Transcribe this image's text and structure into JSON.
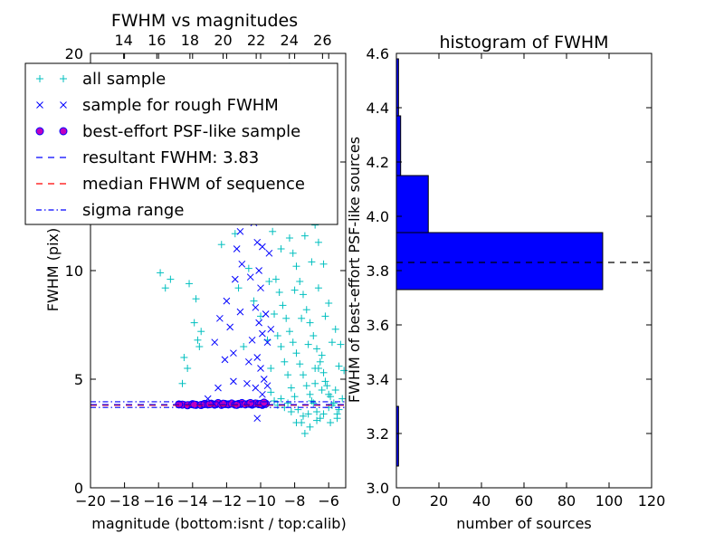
{
  "colors": {
    "all_sample": "#00bfbf",
    "rough_sample": "#0000ff",
    "psf_face": "#bf00bf",
    "psf_edge": "#0000ff",
    "resultant_line": "#0000ff",
    "median_line": "#ff0000",
    "sigma_line": "#0000ff",
    "hist_bar": "#0000ff"
  },
  "chart_data": [
    {
      "type": "scatter",
      "title": "FWHM vs magnitudes",
      "xlabel": "magnitude (bottom:isnt / top:calib)",
      "ylabel": "FWHM (pix)",
      "xlim": [
        -20,
        -5
      ],
      "ylim": [
        0,
        20
      ],
      "top_xlim": [
        12,
        27.4
      ],
      "x_ticks": [
        -20,
        -18,
        -16,
        -14,
        -12,
        -10,
        -8,
        -6
      ],
      "x_tick_labels": [
        "−20",
        "−18",
        "−16",
        "−14",
        "−12",
        "−10",
        "−8",
        "−6"
      ],
      "y_ticks": [
        0,
        5,
        10,
        15,
        20
      ],
      "y_tick_labels": [
        "0",
        "5",
        "10",
        "15",
        "20"
      ],
      "top_x_ticks": [
        14,
        16,
        18,
        20,
        22,
        24,
        26
      ],
      "top_x_tick_labels": [
        "14",
        "16",
        "18",
        "20",
        "22",
        "24",
        "26"
      ],
      "legend": {
        "location": "upper-left",
        "entries": [
          {
            "label": "all sample",
            "marker": "+"
          },
          {
            "label": "sample for rough FWHM",
            "marker": "x"
          },
          {
            "label": "best-effort PSF-like sample",
            "marker": "o"
          },
          {
            "label": "resultant FWHM: 3.83",
            "marker": "--"
          },
          {
            "label": "median FHWM of sequence",
            "marker": "--"
          },
          {
            "label": "sigma range",
            "marker": "-."
          }
        ]
      },
      "lines": {
        "resultant_fwhm": 3.83,
        "median_fwhm": 3.8,
        "sigma_range": [
          3.7,
          3.96
        ]
      },
      "series": [
        {
          "name": "all sample",
          "marker": "+",
          "points": [
            [
              -15.9,
              9.9
            ],
            [
              -15.6,
              9.2
            ],
            [
              -15.3,
              9.6
            ],
            [
              -14.8,
              12.5
            ],
            [
              -14.2,
              9.4
            ],
            [
              -13.8,
              8.7
            ],
            [
              -13.9,
              7.6
            ],
            [
              -13.7,
              6.8
            ],
            [
              -13.5,
              7.2
            ],
            [
              -13.6,
              6.5
            ],
            [
              -14.6,
              4.8
            ],
            [
              -14.3,
              5.5
            ],
            [
              -14.5,
              6.0
            ],
            [
              -12.3,
              11.2
            ],
            [
              -11.5,
              11.7
            ],
            [
              -11.3,
              9.2
            ],
            [
              -10.9,
              12.8
            ],
            [
              -10.7,
              10.1
            ],
            [
              -10.4,
              8.6
            ],
            [
              -10.0,
              7.9
            ],
            [
              -11.0,
              6.5
            ],
            [
              -9.5,
              9.5
            ],
            [
              -9.0,
              14.5
            ],
            [
              -8.8,
              11.0
            ],
            [
              -8.3,
              19.4
            ],
            [
              -8.0,
              16.5
            ],
            [
              -7.6,
              14.8
            ],
            [
              -7.3,
              13.5
            ],
            [
              -6.8,
              12.1
            ],
            [
              -6.6,
              11.3
            ],
            [
              -6.3,
              10.3
            ],
            [
              -6.0,
              8.5
            ],
            [
              -5.6,
              7.3
            ],
            [
              -5.3,
              6.6
            ],
            [
              -5.1,
              5.4
            ],
            [
              -9.2,
              8.0
            ],
            [
              -9.0,
              7.0
            ],
            [
              -8.8,
              6.5
            ],
            [
              -8.6,
              5.8
            ],
            [
              -8.4,
              5.2
            ],
            [
              -8.2,
              4.6
            ],
            [
              -8.0,
              4.2
            ],
            [
              -7.8,
              3.6
            ],
            [
              -7.6,
              3.0
            ],
            [
              -7.4,
              2.5
            ],
            [
              -7.2,
              3.4
            ],
            [
              -7.0,
              4.0
            ],
            [
              -6.8,
              4.8
            ],
            [
              -6.6,
              5.5
            ],
            [
              -6.4,
              6.1
            ],
            [
              -6.2,
              4.9
            ],
            [
              -6.0,
              4.3
            ],
            [
              -5.8,
              3.8
            ],
            [
              -5.6,
              4.5
            ],
            [
              -5.4,
              3.6
            ],
            [
              -5.2,
              4.1
            ],
            [
              -9.6,
              6.8
            ],
            [
              -9.4,
              5.5
            ],
            [
              -9.1,
              9.6
            ],
            [
              -8.9,
              9.0
            ],
            [
              -8.7,
              8.4
            ],
            [
              -8.5,
              7.8
            ],
            [
              -8.3,
              7.2
            ],
            [
              -8.1,
              6.7
            ],
            [
              -7.9,
              6.2
            ],
            [
              -7.7,
              5.7
            ],
            [
              -7.5,
              5.2
            ],
            [
              -7.3,
              4.7
            ],
            [
              -7.1,
              4.3
            ],
            [
              -6.9,
              3.9
            ],
            [
              -6.7,
              3.5
            ],
            [
              -6.5,
              3.2
            ],
            [
              -9.3,
              11.8
            ],
            [
              -9.1,
              12.6
            ],
            [
              -8.9,
              13.2
            ],
            [
              -8.7,
              13.9
            ],
            [
              -8.5,
              12.3
            ],
            [
              -8.3,
              11.5
            ],
            [
              -8.1,
              10.8
            ],
            [
              -7.9,
              10.2
            ],
            [
              -7.7,
              9.5
            ],
            [
              -7.5,
              8.9
            ],
            [
              -7.3,
              8.2
            ],
            [
              -7.1,
              7.6
            ],
            [
              -6.9,
              7.0
            ],
            [
              -6.7,
              6.4
            ],
            [
              -6.5,
              5.8
            ],
            [
              -6.3,
              5.3
            ],
            [
              -6.1,
              4.7
            ],
            [
              -5.9,
              4.2
            ],
            [
              -5.7,
              3.9
            ],
            [
              -5.5,
              3.4
            ],
            [
              -8.6,
              15.2
            ],
            [
              -8.2,
              14.1
            ],
            [
              -7.8,
              12.9
            ],
            [
              -7.4,
              11.6
            ],
            [
              -7.0,
              10.4
            ],
            [
              -6.6,
              9.2
            ],
            [
              -6.2,
              7.9
            ],
            [
              -5.8,
              6.7
            ],
            [
              -5.4,
              5.6
            ],
            [
              -8.0,
              9.1
            ],
            [
              -7.6,
              7.8
            ],
            [
              -7.2,
              6.6
            ],
            [
              -6.8,
              5.5
            ],
            [
              -6.4,
              4.5
            ],
            [
              -6.0,
              3.7
            ],
            [
              -7.9,
              3.0
            ],
            [
              -7.5,
              3.3
            ],
            [
              -7.1,
              2.8
            ],
            [
              -6.7,
              3.1
            ],
            [
              -6.3,
              3.4
            ],
            [
              -5.9,
              3.0
            ],
            [
              -5.5,
              3.2
            ],
            [
              -9.4,
              4.4
            ],
            [
              -9.2,
              4.0
            ],
            [
              -9.0,
              3.8
            ],
            [
              -8.8,
              4.1
            ],
            [
              -8.6,
              3.7
            ],
            [
              -8.4,
              3.9
            ],
            [
              -8.2,
              3.5
            ]
          ]
        },
        {
          "name": "sample for rough FWHM",
          "marker": "x",
          "points": [
            [
              -11.3,
              12.9
            ],
            [
              -11.2,
              11.8
            ],
            [
              -11.4,
              11.0
            ],
            [
              -11.1,
              10.3
            ],
            [
              -11.5,
              9.6
            ],
            [
              -12.0,
              8.6
            ],
            [
              -12.4,
              7.8
            ],
            [
              -11.8,
              7.4
            ],
            [
              -12.7,
              6.7
            ],
            [
              -11.6,
              6.2
            ],
            [
              -12.1,
              5.9
            ],
            [
              -10.6,
              9.7
            ],
            [
              -10.4,
              12.2
            ],
            [
              -10.2,
              11.3
            ],
            [
              -10.1,
              10.0
            ],
            [
              -10.0,
              9.2
            ],
            [
              -10.3,
              8.3
            ],
            [
              -10.1,
              7.6
            ],
            [
              -9.9,
              7.1
            ],
            [
              -10.5,
              6.8
            ],
            [
              -10.2,
              6.0
            ],
            [
              -10.0,
              5.5
            ],
            [
              -9.8,
              5.0
            ],
            [
              -10.3,
              4.6
            ],
            [
              -9.9,
              4.3
            ],
            [
              -10.0,
              3.9
            ],
            [
              -10.2,
              3.2
            ],
            [
              -9.7,
              8.0
            ],
            [
              -9.6,
              6.7
            ],
            [
              -9.8,
              12.5
            ],
            [
              -9.5,
              10.8
            ],
            [
              -11.2,
              8.1
            ],
            [
              -10.8,
              4.8
            ],
            [
              -12.5,
              4.6
            ],
            [
              -13.1,
              4.1
            ],
            [
              -9.6,
              4.7
            ],
            [
              -9.4,
              7.3
            ],
            [
              -11.6,
              4.9
            ],
            [
              -10.7,
              5.8
            ],
            [
              -9.9,
              11.1
            ]
          ]
        },
        {
          "name": "best-effort PSF-like sample",
          "marker": "o",
          "points": [
            [
              -14.6,
              3.83
            ],
            [
              -14.3,
              3.8
            ],
            [
              -14.0,
              3.85
            ],
            [
              -13.8,
              3.82
            ],
            [
              -13.5,
              3.81
            ],
            [
              -13.3,
              3.86
            ],
            [
              -13.1,
              3.84
            ],
            [
              -12.9,
              3.87
            ],
            [
              -12.7,
              3.83
            ],
            [
              -12.5,
              3.9
            ],
            [
              -12.3,
              3.82
            ],
            [
              -12.1,
              3.86
            ],
            [
              -11.9,
              3.84
            ],
            [
              -11.7,
              3.88
            ],
            [
              -11.5,
              3.83
            ],
            [
              -11.3,
              3.86
            ],
            [
              -11.1,
              3.9
            ],
            [
              -10.9,
              3.84
            ],
            [
              -10.7,
              3.87
            ],
            [
              -10.5,
              3.83
            ],
            [
              -10.3,
              3.88
            ],
            [
              -10.1,
              3.85
            ],
            [
              -9.9,
              3.82
            ],
            [
              -9.7,
              3.87
            ],
            [
              -14.8,
              3.84
            ],
            [
              -13.9,
              3.83
            ],
            [
              -13.0,
              3.85
            ],
            [
              -12.2,
              3.87
            ],
            [
              -11.4,
              3.82
            ],
            [
              -10.6,
              3.9
            ],
            [
              -10.0,
              3.86
            ],
            [
              -9.8,
              3.92
            ]
          ]
        }
      ]
    },
    {
      "type": "bar",
      "orientation": "horizontal",
      "title": "histogram of FWHM",
      "xlabel": "number of sources",
      "ylabel": "FWHM of best-effort PSF-like sources",
      "xlim": [
        0,
        120
      ],
      "ylim": [
        3.0,
        4.6
      ],
      "x_ticks": [
        0,
        20,
        40,
        60,
        80,
        100,
        120
      ],
      "x_tick_labels": [
        "0",
        "20",
        "40",
        "60",
        "80",
        "100",
        "120"
      ],
      "y_ticks": [
        3.0,
        3.2,
        3.4,
        3.6,
        3.8,
        4.0,
        4.2,
        4.4,
        4.6
      ],
      "y_tick_labels": [
        "3.0",
        "3.2",
        "3.4",
        "3.6",
        "3.8",
        "4.0",
        "4.2",
        "4.4",
        "4.6"
      ],
      "bins": [
        {
          "from": 3.08,
          "to": 3.3,
          "count": 1
        },
        {
          "from": 3.73,
          "to": 3.94,
          "count": 97
        },
        {
          "from": 3.94,
          "to": 4.15,
          "count": 15
        },
        {
          "from": 4.15,
          "to": 4.37,
          "count": 2
        },
        {
          "from": 4.37,
          "to": 4.58,
          "count": 1
        }
      ],
      "reference_line": 3.83
    }
  ]
}
